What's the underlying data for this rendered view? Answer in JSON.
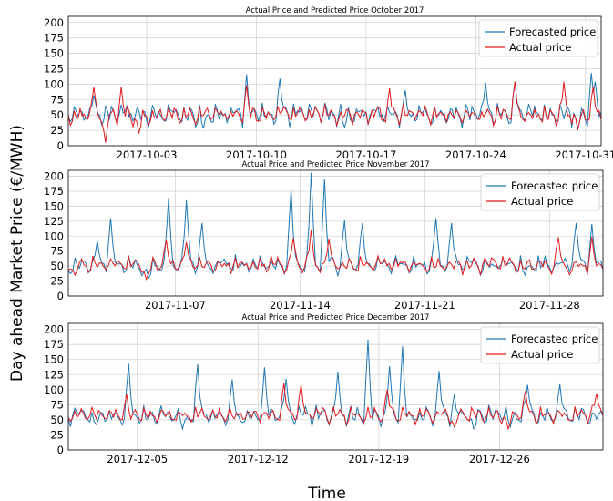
{
  "figure": {
    "ylabel": "Day ahead Market Price (€/MWH)",
    "xlabel": "Time"
  },
  "colors": {
    "forecast": "#1f77b4",
    "actual": "#e31a1c",
    "grid": "#d3d3d3"
  },
  "chart_data": [
    {
      "type": "line",
      "title": "Actual Price and Predicted Price October 2017",
      "xlim": [
        "2017-09-28",
        "2017-11-01"
      ],
      "ylim": [
        0,
        210
      ],
      "yticks": [
        0,
        25,
        50,
        75,
        100,
        125,
        150,
        175,
        200
      ],
      "xtick_labels": [
        "2017-10-03",
        "2017-10-10",
        "2017-10-17",
        "2017-10-24",
        "2017-10-31"
      ],
      "grid": true,
      "legend_position": "top-right",
      "series": [
        {
          "name": "Forecasted price",
          "color": "#1f77b4",
          "base": 48,
          "amplitude": 14,
          "noise": 8,
          "peaks": [
            [
              "2017-09-29",
              82
            ],
            [
              "2017-10-09",
              116
            ],
            [
              "2017-10-11",
              109
            ],
            [
              "2017-10-19",
              90
            ],
            [
              "2017-10-24",
              103
            ],
            [
              "2017-10-26",
              104
            ],
            [
              "2017-10-31",
              118
            ],
            [
              "2017-10-31",
              104
            ]
          ],
          "dips": [
            [
              "2017-10-06",
              28
            ],
            [
              "2017-10-15",
              30
            ],
            [
              "2017-10-30",
              28
            ]
          ]
        },
        {
          "name": "Actual price",
          "color": "#e31a1c",
          "base": 48,
          "amplitude": 13,
          "noise": 7,
          "peaks": [
            [
              "2017-09-29",
              95
            ],
            [
              "2017-10-01",
              96
            ],
            [
              "2017-10-09",
              98
            ],
            [
              "2017-10-18",
              93
            ],
            [
              "2017-10-26",
              104
            ],
            [
              "2017-10-29",
              104
            ],
            [
              "2017-10-31",
              96
            ]
          ],
          "dips": [
            [
              "2017-09-30",
              5
            ],
            [
              "2017-10-02",
              20
            ],
            [
              "2017-10-30",
              25
            ]
          ]
        }
      ]
    },
    {
      "type": "line",
      "title": "Actual Price and Predicted Price November 2017",
      "xlim": [
        "2017-11-01",
        "2017-12-01"
      ],
      "ylim": [
        0,
        210
      ],
      "yticks": [
        0,
        25,
        50,
        75,
        100,
        125,
        150,
        175,
        200
      ],
      "xtick_labels": [
        "2017-11-07",
        "2017-11-14",
        "2017-11-21",
        "2017-11-28"
      ],
      "grid": true,
      "legend_position": "top-right",
      "series": [
        {
          "name": "Forecasted price",
          "color": "#1f77b4",
          "base": 50,
          "amplitude": 13,
          "noise": 7,
          "peaks": [
            [
              "2017-11-02",
              92
            ],
            [
              "2017-11-03",
              130
            ],
            [
              "2017-11-06",
              164
            ],
            [
              "2017-11-07",
              160
            ],
            [
              "2017-11-08",
              122
            ],
            [
              "2017-11-13",
              178
            ],
            [
              "2017-11-14",
              206
            ],
            [
              "2017-11-15",
              196
            ],
            [
              "2017-11-16",
              127
            ],
            [
              "2017-11-17",
              122
            ],
            [
              "2017-11-21",
              130
            ],
            [
              "2017-11-22",
              122
            ],
            [
              "2017-11-29",
              122
            ],
            [
              "2017-11-30",
              120
            ]
          ],
          "dips": [
            [
              "2017-11-05",
              30
            ],
            [
              "2017-11-26",
              35
            ]
          ]
        },
        {
          "name": "Actual price",
          "color": "#e31a1c",
          "base": 50,
          "amplitude": 12,
          "noise": 6,
          "peaks": [
            [
              "2017-11-06",
              93
            ],
            [
              "2017-11-07",
              90
            ],
            [
              "2017-11-13",
              97
            ],
            [
              "2017-11-14",
              110
            ],
            [
              "2017-11-15",
              96
            ],
            [
              "2017-11-28",
              98
            ],
            [
              "2017-11-30",
              99
            ]
          ],
          "dips": [
            [
              "2017-11-01",
              35
            ],
            [
              "2017-11-05",
              28
            ]
          ]
        }
      ]
    },
    {
      "type": "line",
      "title": "Actual Price and Predicted Price December 2017",
      "xlim": [
        "2017-12-01",
        "2018-01-01"
      ],
      "ylim": [
        0,
        210
      ],
      "yticks": [
        0,
        25,
        50,
        75,
        100,
        125,
        150,
        175,
        200
      ],
      "xtick_labels": [
        "2017-12-05",
        "2017-12-12",
        "2017-12-19",
        "2017-12-26"
      ],
      "grid": true,
      "legend_position": "top-right",
      "series": [
        {
          "name": "Forecasted price",
          "color": "#1f77b4",
          "base": 55,
          "amplitude": 13,
          "noise": 7,
          "peaks": [
            [
              "2017-12-04",
              143
            ],
            [
              "2017-12-08",
              142
            ],
            [
              "2017-12-10",
              117
            ],
            [
              "2017-12-12",
              137
            ],
            [
              "2017-12-13",
              118
            ],
            [
              "2017-12-16",
              130
            ],
            [
              "2017-12-18",
              183
            ],
            [
              "2017-12-19",
              139
            ],
            [
              "2017-12-20",
              172
            ],
            [
              "2017-12-22",
              131
            ],
            [
              "2017-12-23",
              92
            ],
            [
              "2017-12-27",
              108
            ],
            [
              "2017-12-29",
              109
            ]
          ],
          "dips": [
            [
              "2017-12-02",
              42
            ],
            [
              "2017-12-07",
              35
            ],
            [
              "2017-12-24",
              35
            ],
            [
              "2017-12-26",
              38
            ]
          ]
        },
        {
          "name": "Actual price",
          "color": "#e31a1c",
          "base": 56,
          "amplitude": 12,
          "noise": 6,
          "peaks": [
            [
              "2017-12-04",
              93
            ],
            [
              "2017-12-13",
              111
            ],
            [
              "2017-12-14",
              108
            ],
            [
              "2017-12-19",
              100
            ],
            [
              "2017-12-27",
              98
            ],
            [
              "2017-12-31",
              94
            ]
          ],
          "dips": [
            [
              "2017-12-23",
              38
            ],
            [
              "2017-12-26",
              35
            ]
          ]
        }
      ]
    }
  ]
}
